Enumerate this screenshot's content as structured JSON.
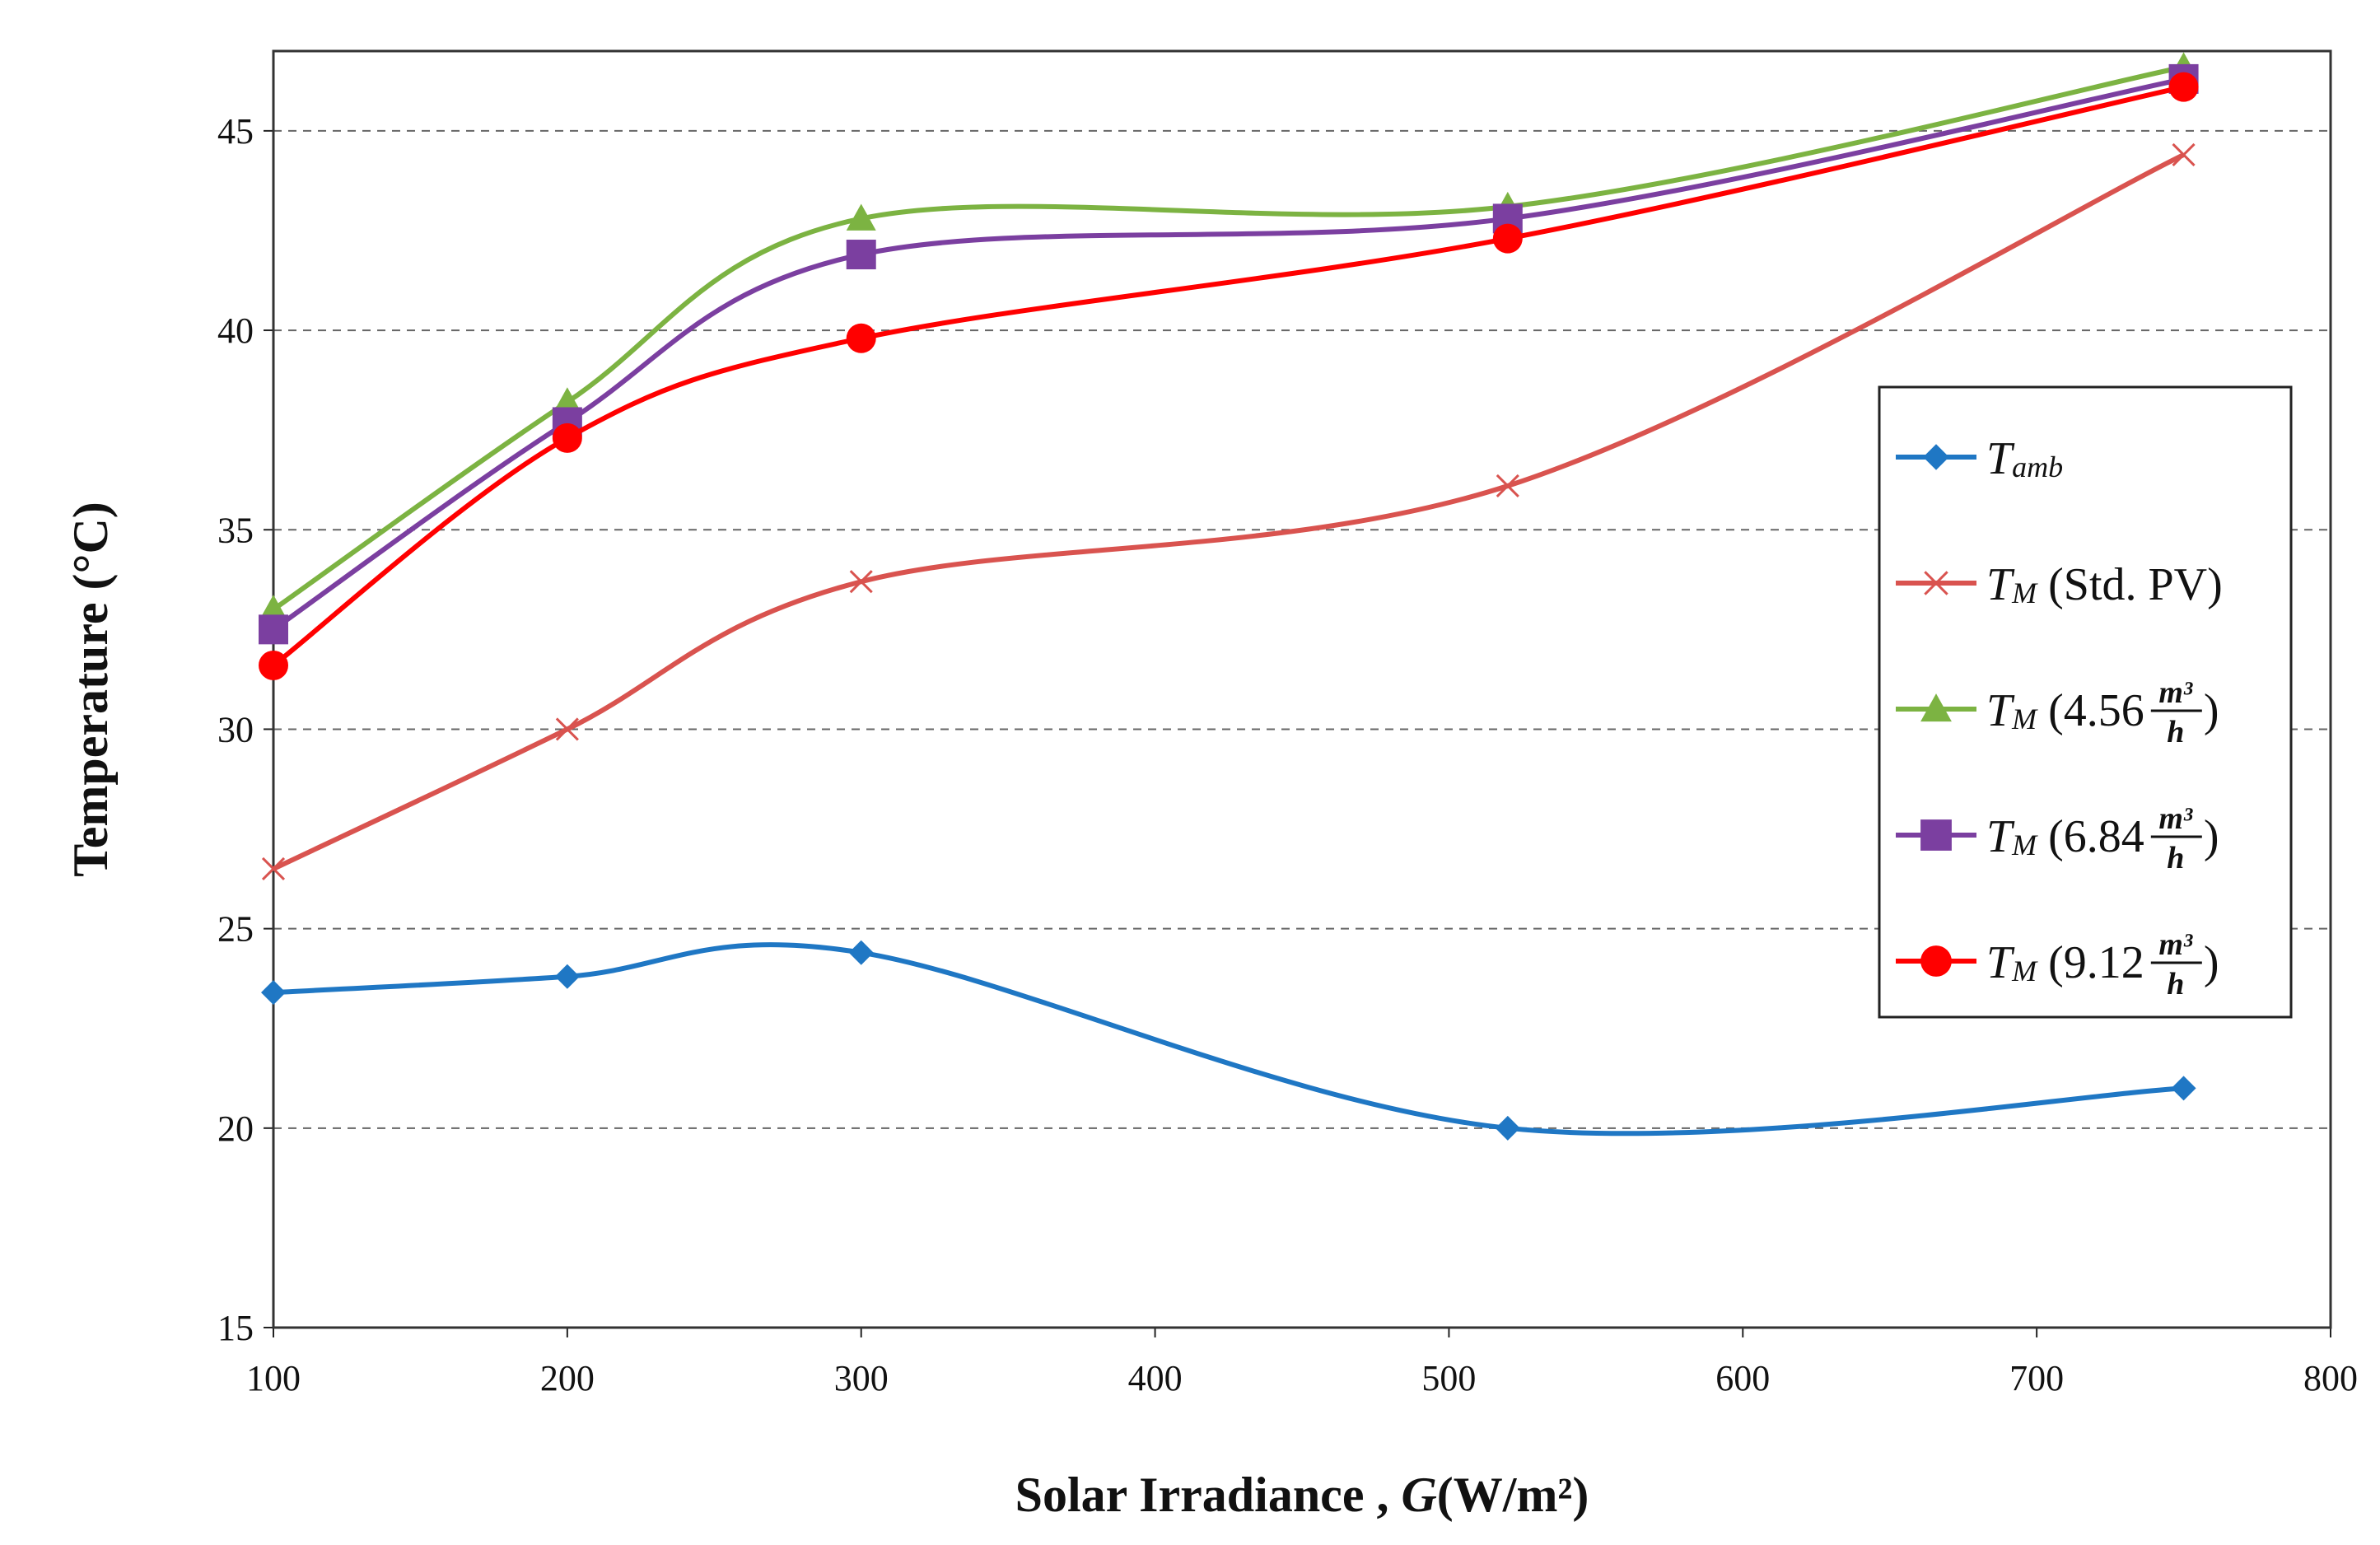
{
  "chart_data": {
    "type": "line",
    "xlabel": "Solar Irradiance , G(W/m²)",
    "xlabel_parts": {
      "main": "Solar Irradiance , ",
      "var": "G",
      "unit": "(W/m²)"
    },
    "ylabel": "Temperature (°C)",
    "xlim": [
      100,
      800
    ],
    "ylim": [
      15,
      47
    ],
    "xticks": [
      "100",
      "200",
      "300",
      "400",
      "500",
      "600",
      "700",
      "800"
    ],
    "yticks": [
      "15",
      "20",
      "25",
      "30",
      "35",
      "40",
      "45"
    ],
    "grid": "horizontal dashed",
    "legend_position": "right",
    "x": [
      100,
      200,
      300,
      520,
      750
    ],
    "series": [
      {
        "name": "Tamb",
        "symbol": "T",
        "subscript": "amb",
        "suffix": "",
        "marker": "diamond",
        "color": "#1f77c4",
        "values": [
          23.4,
          23.8,
          24.4,
          20.0,
          21.0
        ]
      },
      {
        "name": "TM (Std. PV)",
        "symbol": "T",
        "subscript": "M",
        "suffix": " (Std. PV)",
        "marker": "x",
        "color": "#d9534f",
        "values": [
          26.5,
          30.0,
          33.7,
          36.1,
          44.4
        ]
      },
      {
        "name": "TM (4.56 m³/h)",
        "symbol": "T",
        "subscript": "M",
        "suffix": " (4.56",
        "frac_num": "m³",
        "frac_den": "h",
        "close": ")",
        "marker": "triangle",
        "color": "#7cb342",
        "values": [
          33.0,
          38.2,
          42.8,
          43.1,
          46.6
        ]
      },
      {
        "name": "TM (6.84 m³/h)",
        "symbol": "T",
        "subscript": "M",
        "suffix": " (6.84",
        "frac_num": "m³",
        "frac_den": "h",
        "close": ")",
        "marker": "square",
        "color": "#7b3fa0",
        "values": [
          32.5,
          37.7,
          41.9,
          42.8,
          46.3
        ]
      },
      {
        "name": "TM (9.12 m³/h)",
        "symbol": "T",
        "subscript": "M",
        "suffix": " (9.12",
        "frac_num": "m³",
        "frac_den": "h",
        "close": ")",
        "marker": "circle",
        "color": "#ff0000",
        "values": [
          31.6,
          37.3,
          39.8,
          42.3,
          46.1
        ]
      }
    ]
  }
}
